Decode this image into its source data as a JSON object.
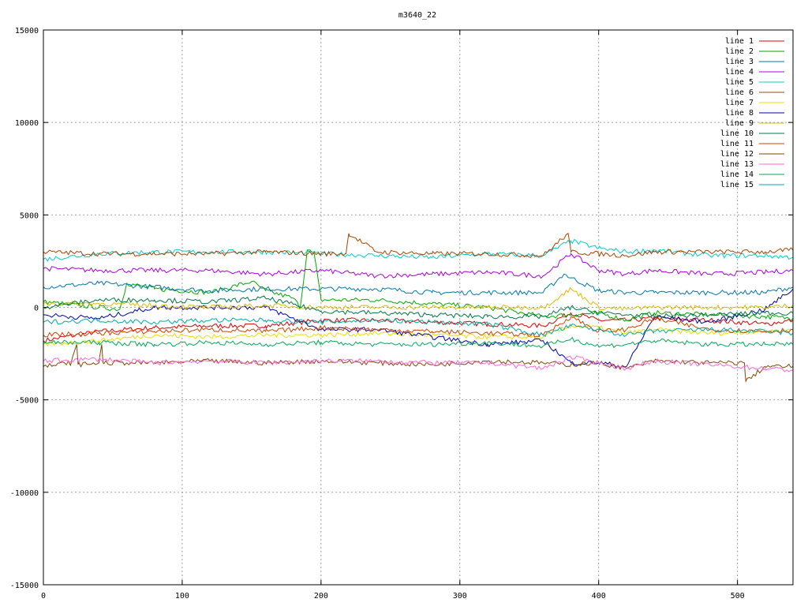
{
  "chart_data": {
    "type": "line",
    "title": "m3640_22",
    "xlim": [
      0,
      540
    ],
    "ylim": [
      -15000,
      15000
    ],
    "xticks": [
      0,
      100,
      200,
      300,
      400,
      500
    ],
    "yticks": [
      -15000,
      -10000,
      -5000,
      0,
      5000,
      10000,
      15000
    ],
    "grid": true,
    "legend_position": "top-right",
    "series": [
      {
        "name": "line 1",
        "color": "#dd0000",
        "x": [
          0,
          40,
          80,
          120,
          160,
          200,
          240,
          280,
          320,
          360,
          380,
          400,
          420,
          440,
          480,
          520,
          540
        ],
        "y": [
          -1800,
          -1300,
          -1100,
          -1000,
          -1000,
          -700,
          -700,
          -800,
          -900,
          -1000,
          -300,
          -700,
          -700,
          -600,
          -700,
          -900,
          -700
        ]
      },
      {
        "name": "line 2",
        "color": "#00aa00",
        "x": [
          0,
          40,
          55,
          60,
          80,
          120,
          150,
          160,
          180,
          185,
          190,
          195,
          200,
          240,
          280,
          320,
          360,
          380,
          400,
          420,
          440,
          480,
          520,
          540
        ],
        "y": [
          300,
          0,
          -100,
          1300,
          1000,
          800,
          1400,
          900,
          500,
          0,
          3100,
          2900,
          400,
          400,
          200,
          0,
          -500,
          -400,
          -300,
          -700,
          -300,
          -400,
          -500,
          -600
        ]
      },
      {
        "name": "line 3",
        "color": "#0077aa",
        "x": [
          0,
          40,
          80,
          120,
          160,
          200,
          240,
          280,
          320,
          360,
          375,
          380,
          400,
          420,
          440,
          480,
          520,
          540
        ],
        "y": [
          1100,
          1300,
          1100,
          900,
          1000,
          1000,
          1000,
          800,
          800,
          800,
          1800,
          1600,
          900,
          800,
          800,
          800,
          800,
          1100
        ]
      },
      {
        "name": "line 4",
        "color": "#aa00dd",
        "x": [
          0,
          40,
          80,
          120,
          160,
          200,
          240,
          280,
          320,
          360,
          380,
          400,
          420,
          440,
          480,
          520,
          540
        ],
        "y": [
          2100,
          2000,
          2000,
          2000,
          1800,
          2000,
          1700,
          1800,
          1900,
          1700,
          2900,
          2000,
          1800,
          2000,
          1800,
          1900,
          2000
        ]
      },
      {
        "name": "line 5",
        "color": "#00cccc",
        "x": [
          0,
          40,
          80,
          120,
          160,
          200,
          240,
          280,
          320,
          360,
          380,
          400,
          420,
          440,
          480,
          520,
          540
        ],
        "y": [
          2600,
          2900,
          3000,
          3000,
          3000,
          2900,
          2800,
          2700,
          2900,
          2800,
          3600,
          3200,
          3000,
          3100,
          2800,
          2800,
          2700
        ]
      },
      {
        "name": "line 6",
        "color": "#aa4400",
        "x": [
          0,
          40,
          80,
          120,
          160,
          200,
          218,
          220,
          240,
          280,
          320,
          360,
          378,
          380,
          400,
          420,
          440,
          480,
          520,
          540
        ],
        "y": [
          3000,
          2900,
          2900,
          2900,
          3000,
          2900,
          2900,
          4000,
          3000,
          2900,
          2900,
          2800,
          4000,
          3000,
          2900,
          2800,
          3000,
          3000,
          3000,
          3100
        ]
      },
      {
        "name": "line 7",
        "color": "#eedd00",
        "x": [
          0,
          40,
          80,
          120,
          160,
          200,
          240,
          280,
          320,
          360,
          380,
          400,
          420,
          440,
          480,
          520,
          540
        ],
        "y": [
          -2000,
          -1800,
          -1500,
          -1600,
          -1500,
          -1500,
          -1400,
          -1500,
          -1600,
          -1600,
          -1000,
          -1100,
          -1400,
          -1200,
          -1400,
          -1300,
          -1200
        ]
      },
      {
        "name": "line 8",
        "color": "#0000aa",
        "x": [
          0,
          40,
          80,
          120,
          160,
          200,
          240,
          280,
          320,
          360,
          380,
          400,
          420,
          440,
          480,
          520,
          540
        ],
        "y": [
          -400,
          -600,
          0,
          0,
          0,
          -1200,
          -1200,
          -1600,
          -2000,
          -1800,
          -3000,
          -3000,
          -3200,
          -500,
          -800,
          -100,
          1000
        ]
      },
      {
        "name": "line 9",
        "color": "#ddbb00",
        "x": [
          0,
          40,
          80,
          120,
          160,
          200,
          240,
          280,
          320,
          360,
          380,
          400,
          420,
          440,
          480,
          520,
          540
        ],
        "y": [
          200,
          200,
          100,
          0,
          100,
          0,
          0,
          0,
          0,
          0,
          1000,
          0,
          -100,
          0,
          0,
          0,
          100
        ]
      },
      {
        "name": "line 10",
        "color": "#007744",
        "x": [
          0,
          40,
          80,
          120,
          160,
          200,
          240,
          280,
          320,
          360,
          380,
          400,
          420,
          440,
          480,
          520,
          540
        ],
        "y": [
          0,
          400,
          400,
          300,
          500,
          -200,
          -300,
          -400,
          -500,
          -500,
          0,
          -300,
          -400,
          -500,
          -400,
          -300,
          -300
        ]
      },
      {
        "name": "line 11",
        "color": "#cc4400",
        "x": [
          0,
          40,
          80,
          120,
          160,
          200,
          240,
          280,
          320,
          360,
          380,
          400,
          420,
          440,
          480,
          520,
          540
        ],
        "y": [
          -1500,
          -1400,
          -1300,
          -1200,
          -1300,
          -1100,
          -1200,
          -1300,
          -1400,
          -1500,
          -500,
          -1300,
          -1200,
          -600,
          -1200,
          -1300,
          -1200
        ]
      },
      {
        "name": "line 12",
        "color": "#884400",
        "x": [
          0,
          20,
          24,
          25,
          40,
          42,
          43,
          60,
          80,
          120,
          160,
          200,
          240,
          280,
          320,
          360,
          380,
          400,
          420,
          440,
          480,
          505,
          506,
          520,
          540
        ],
        "y": [
          -3200,
          -3000,
          -2000,
          -3100,
          -3000,
          -2000,
          -3000,
          -3000,
          -3000,
          -2900,
          -3000,
          -2900,
          -3000,
          -3100,
          -2900,
          -3000,
          -3100,
          -3000,
          -3300,
          -2900,
          -3000,
          -3000,
          -4000,
          -3200,
          -3200
        ]
      },
      {
        "name": "line 13",
        "color": "#ff66dd",
        "x": [
          0,
          40,
          80,
          120,
          160,
          200,
          240,
          280,
          320,
          360,
          380,
          400,
          420,
          440,
          480,
          520,
          540
        ],
        "y": [
          -2900,
          -2800,
          -3000,
          -2900,
          -3000,
          -2900,
          -2900,
          -3000,
          -3000,
          -3300,
          -2700,
          -3000,
          -3300,
          -2900,
          -3100,
          -3300,
          -3400
        ]
      },
      {
        "name": "line 14",
        "color": "#00aa55",
        "x": [
          0,
          40,
          80,
          120,
          160,
          200,
          240,
          280,
          320,
          360,
          380,
          400,
          420,
          440,
          480,
          520,
          540
        ],
        "y": [
          -1900,
          -1900,
          -2000,
          -1900,
          -2000,
          -1900,
          -2000,
          -2000,
          -1900,
          -2100,
          -1700,
          -2100,
          -2000,
          -1800,
          -2000,
          -2000,
          -2000
        ]
      },
      {
        "name": "line 15",
        "color": "#00aaaa",
        "x": [
          0,
          40,
          80,
          120,
          160,
          200,
          240,
          280,
          320,
          360,
          380,
          400,
          420,
          440,
          480,
          520,
          540
        ],
        "y": [
          -800,
          -700,
          -800,
          -700,
          -700,
          -800,
          -700,
          -800,
          -900,
          -1500,
          -1000,
          -1200,
          -1500,
          -1300,
          -1200,
          -1300,
          -1400
        ]
      }
    ]
  }
}
